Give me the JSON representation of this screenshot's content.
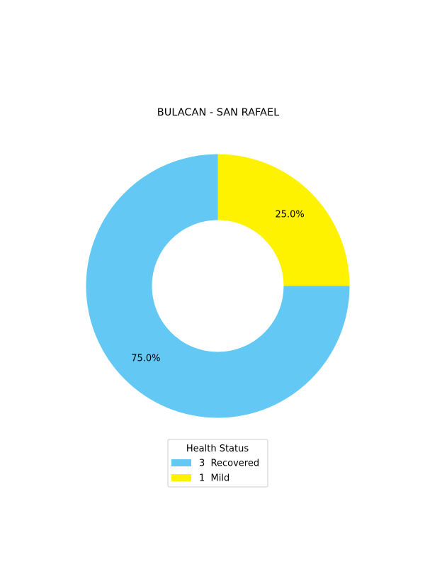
{
  "chart_data": {
    "type": "pie",
    "style": "donut",
    "title": "BULACAN - SAN RAFAEL",
    "slices": [
      {
        "label": "Recovered",
        "count": 3,
        "value": 75.0,
        "pct_label": "75.0%",
        "legend_label": "3  Recovered",
        "color": "#63c8f4"
      },
      {
        "label": "Mild",
        "count": 1,
        "value": 25.0,
        "pct_label": "25.0%",
        "legend_label": "1  Mild",
        "color": "#fff200"
      }
    ],
    "legend": {
      "title": "Health Status",
      "placement": "bottom-center"
    }
  }
}
